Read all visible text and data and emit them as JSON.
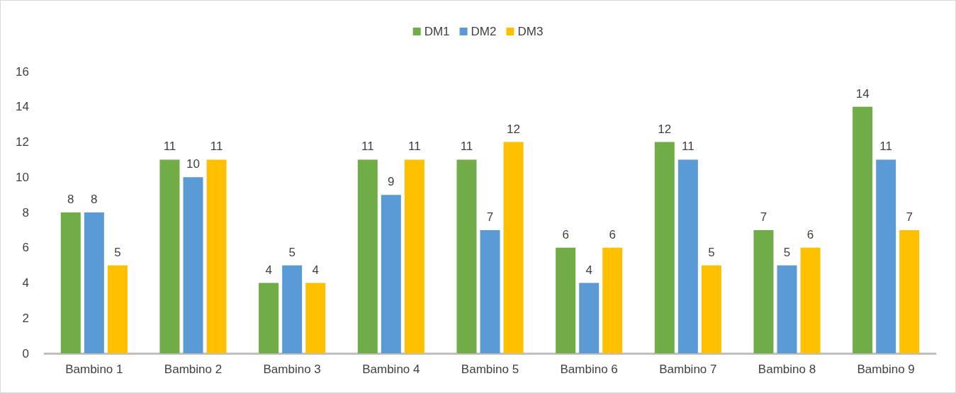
{
  "chart_data": {
    "type": "bar",
    "categories": [
      "Bambino 1",
      "Bambino 2",
      "Bambino 3",
      "Bambino 4",
      "Bambino 5",
      "Bambino 6",
      "Bambino 7",
      "Bambino 8",
      "Bambino 9"
    ],
    "series": [
      {
        "name": "DM1",
        "color": "#70ad47",
        "values": [
          8,
          11,
          4,
          11,
          11,
          6,
          12,
          7,
          14
        ]
      },
      {
        "name": "DM2",
        "color": "#5b9bd5",
        "values": [
          8,
          10,
          5,
          9,
          7,
          4,
          11,
          5,
          11
        ]
      },
      {
        "name": "DM3",
        "color": "#ffc000",
        "values": [
          5,
          11,
          4,
          11,
          12,
          6,
          5,
          6,
          7
        ]
      }
    ],
    "ylim": [
      0,
      16
    ],
    "yticks": [
      0,
      2,
      4,
      6,
      8,
      10,
      12,
      14,
      16
    ],
    "grid": false,
    "legend": "top",
    "data_labels": true
  }
}
